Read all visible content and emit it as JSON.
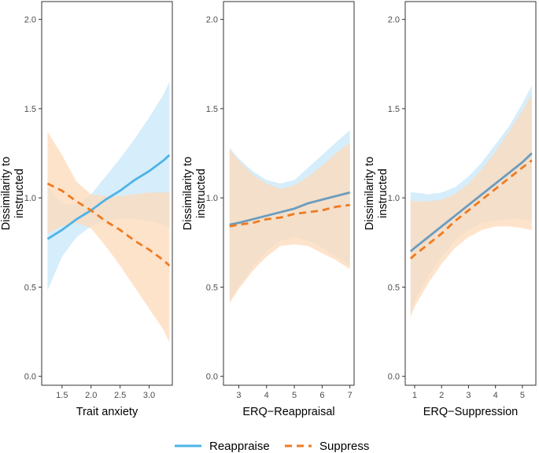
{
  "chart_data": [
    {
      "type": "line",
      "xlabel": "Trait anxiety",
      "ylabel_lines": [
        "Dissimilarity to",
        "instructed"
      ],
      "xlim": [
        1.15,
        3.4
      ],
      "ylim": [
        -0.05,
        2.1
      ],
      "xticks": [
        1.5,
        2.0,
        2.5,
        3.0
      ],
      "xtick_labels": [
        "1.5",
        "2.0",
        "2.5",
        "3.0"
      ],
      "yticks": [
        0.0,
        0.5,
        1.0,
        1.5,
        2.0
      ],
      "ytick_labels": [
        "0.0",
        "0.5",
        "1.0",
        "1.5",
        "2.0"
      ],
      "series": [
        {
          "name": "Reappraise",
          "x": [
            1.25,
            1.5,
            1.75,
            2.0,
            2.25,
            2.5,
            2.75,
            3.0,
            3.25,
            3.35
          ],
          "y": [
            0.77,
            0.82,
            0.88,
            0.93,
            0.99,
            1.04,
            1.1,
            1.15,
            1.21,
            1.24
          ],
          "lower": [
            0.48,
            0.67,
            0.78,
            0.84,
            0.87,
            0.88,
            0.88,
            0.87,
            0.85,
            0.83
          ],
          "upper": [
            1.06,
            0.97,
            0.96,
            1.02,
            1.12,
            1.22,
            1.33,
            1.45,
            1.58,
            1.65
          ]
        },
        {
          "name": "Suppress",
          "x": [
            1.25,
            1.5,
            1.75,
            2.0,
            2.25,
            2.5,
            2.75,
            3.0,
            3.25,
            3.35
          ],
          "y": [
            1.08,
            1.04,
            0.98,
            0.93,
            0.87,
            0.82,
            0.76,
            0.71,
            0.65,
            0.62
          ],
          "lower": [
            0.8,
            0.84,
            0.86,
            0.83,
            0.73,
            0.62,
            0.5,
            0.38,
            0.26,
            0.19
          ],
          "upper": [
            1.37,
            1.24,
            1.09,
            1.02,
            1.01,
            1.01,
            1.02,
            1.03,
            1.03,
            1.03
          ]
        }
      ]
    },
    {
      "type": "line",
      "xlabel": "ERQ−Reappraisal",
      "ylabel_lines": [
        "Dissimilarity to",
        "instructed"
      ],
      "xlim": [
        2.45,
        7.15
      ],
      "ylim": [
        -0.05,
        2.1
      ],
      "xticks": [
        3,
        4,
        5,
        6,
        7
      ],
      "xtick_labels": [
        "3",
        "4",
        "5",
        "6",
        "7"
      ],
      "yticks": [
        0.0,
        0.5,
        1.0,
        1.5,
        2.0
      ],
      "ytick_labels": [
        "0.0",
        "0.5",
        "1.0",
        "1.5",
        "2.0"
      ],
      "series": [
        {
          "name": "Reappraise",
          "x": [
            2.67,
            3.0,
            3.5,
            4.0,
            4.5,
            5.0,
            5.5,
            6.0,
            6.5,
            7.0
          ],
          "y": [
            0.85,
            0.86,
            0.88,
            0.9,
            0.92,
            0.94,
            0.97,
            0.99,
            1.01,
            1.03
          ],
          "lower": [
            0.42,
            0.5,
            0.61,
            0.7,
            0.76,
            0.78,
            0.76,
            0.72,
            0.67,
            0.62
          ],
          "upper": [
            1.28,
            1.22,
            1.15,
            1.1,
            1.08,
            1.1,
            1.17,
            1.24,
            1.31,
            1.38
          ]
        },
        {
          "name": "Suppress",
          "x": [
            2.67,
            3.0,
            3.5,
            4.0,
            4.5,
            5.0,
            5.5,
            6.0,
            6.5,
            7.0
          ],
          "y": [
            0.84,
            0.85,
            0.86,
            0.88,
            0.89,
            0.91,
            0.92,
            0.93,
            0.95,
            0.96
          ],
          "lower": [
            0.41,
            0.49,
            0.59,
            0.67,
            0.73,
            0.74,
            0.73,
            0.69,
            0.65,
            0.6
          ],
          "upper": [
            1.27,
            1.21,
            1.13,
            1.08,
            1.05,
            1.07,
            1.12,
            1.18,
            1.25,
            1.31
          ]
        }
      ]
    },
    {
      "type": "line",
      "xlabel": "ERQ−Suppression",
      "ylabel_lines": [
        "Dissimilarity to",
        "instructed"
      ],
      "xlim": [
        0.65,
        5.5
      ],
      "ylim": [
        -0.05,
        2.1
      ],
      "xticks": [
        1,
        2,
        3,
        4,
        5
      ],
      "xtick_labels": [
        "1",
        "2",
        "3",
        "4",
        "5"
      ],
      "yticks": [
        0.0,
        0.5,
        1.0,
        1.5,
        2.0
      ],
      "ytick_labels": [
        "0.0",
        "0.5",
        "1.0",
        "1.5",
        "2.0"
      ],
      "series": [
        {
          "name": "Reappraise",
          "x": [
            0.85,
            1.0,
            1.5,
            2.0,
            2.5,
            3.0,
            3.5,
            4.0,
            4.5,
            5.0,
            5.35
          ],
          "y": [
            0.7,
            0.72,
            0.78,
            0.84,
            0.9,
            0.96,
            1.02,
            1.08,
            1.14,
            1.2,
            1.25
          ],
          "lower": [
            0.36,
            0.42,
            0.56,
            0.67,
            0.76,
            0.82,
            0.86,
            0.87,
            0.88,
            0.88,
            0.87
          ],
          "upper": [
            1.03,
            1.03,
            1.02,
            1.03,
            1.06,
            1.12,
            1.2,
            1.3,
            1.4,
            1.53,
            1.63
          ]
        },
        {
          "name": "Suppress",
          "x": [
            0.85,
            1.0,
            1.5,
            2.0,
            2.5,
            3.0,
            3.5,
            4.0,
            4.5,
            5.0,
            5.35
          ],
          "y": [
            0.66,
            0.68,
            0.74,
            0.8,
            0.87,
            0.93,
            0.99,
            1.05,
            1.11,
            1.17,
            1.21
          ],
          "lower": [
            0.33,
            0.39,
            0.52,
            0.63,
            0.72,
            0.78,
            0.82,
            0.84,
            0.84,
            0.83,
            0.82
          ],
          "upper": [
            0.99,
            0.98,
            0.98,
            0.99,
            1.02,
            1.08,
            1.16,
            1.26,
            1.37,
            1.49,
            1.58
          ]
        }
      ]
    }
  ],
  "legend": {
    "position": "bottom",
    "items": [
      {
        "label": "Reappraise",
        "color": "#4db3e6",
        "dash": "solid"
      },
      {
        "label": "Suppress",
        "color": "#f07a1f",
        "dash": "dashed"
      }
    ]
  },
  "colors": {
    "reappraise_line": "#4db3e6",
    "reappraise_band": "#cfeafa",
    "suppress_line": "#f07a1f",
    "suppress_band": "#fdd9b9",
    "overlap_line": "#6c9cbf",
    "panel_border": "#333333",
    "tick_text": "#4d4d4d"
  }
}
